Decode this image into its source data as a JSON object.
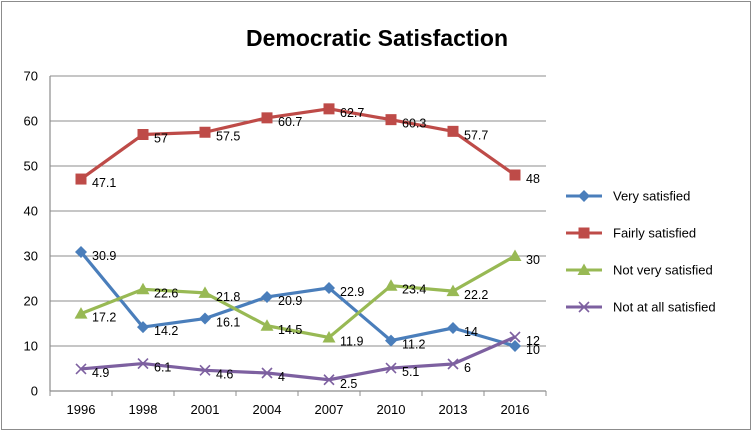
{
  "chart_data": {
    "type": "line",
    "title": "Democratic Satisfaction",
    "xlabel": "",
    "ylabel": "",
    "categories": [
      "1996",
      "1998",
      "2001",
      "2004",
      "2007",
      "2010",
      "2013",
      "2016"
    ],
    "ylim": [
      0,
      70
    ],
    "yticks": [
      0,
      10,
      20,
      30,
      40,
      50,
      60,
      70
    ],
    "grid": true,
    "legend_position": "right",
    "series": [
      {
        "name": "Very satisfied",
        "color": "#4a7ebb",
        "marker": "diamond",
        "values": [
          30.9,
          14.2,
          16.1,
          20.9,
          22.9,
          11.2,
          14,
          10
        ],
        "labels": [
          "30.9",
          "14.2",
          "16.1",
          "20.9",
          "22.9",
          "11.2",
          "14",
          "10"
        ]
      },
      {
        "name": "Fairly satisfied",
        "color": "#be4b48",
        "marker": "square",
        "values": [
          47.1,
          57,
          57.5,
          60.7,
          62.7,
          60.3,
          57.7,
          48
        ],
        "labels": [
          "47.1",
          "57",
          "57.5",
          "60.7",
          "62.7",
          "60.3",
          "57.7",
          "48"
        ]
      },
      {
        "name": "Not very satisfied",
        "color": "#98b954",
        "marker": "triangle",
        "values": [
          17.2,
          22.6,
          21.8,
          14.5,
          11.9,
          23.4,
          22.2,
          30
        ],
        "labels": [
          "17.2",
          "22.6",
          "21.8",
          "14.5",
          "11.9",
          "23.4",
          "22.2",
          "30"
        ]
      },
      {
        "name": "Not at all satisfied",
        "color": "#7d60a0",
        "marker": "x",
        "values": [
          4.9,
          6.1,
          4.6,
          4,
          2.5,
          5.1,
          6,
          12
        ],
        "labels": [
          "4.9",
          "6.1",
          "4.6",
          "4",
          "2.5",
          "5.1",
          "6",
          "12"
        ]
      }
    ]
  }
}
